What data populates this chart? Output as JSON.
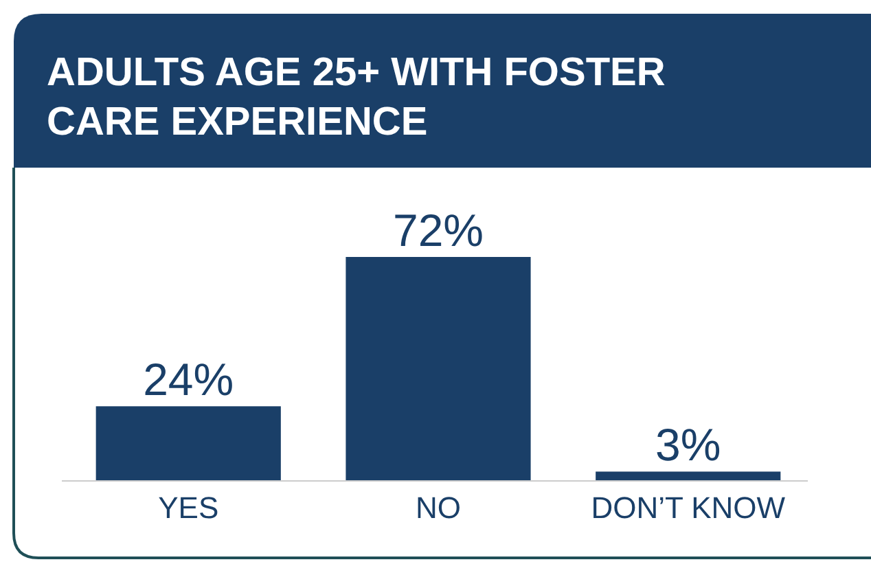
{
  "chart_data": {
    "type": "bar",
    "title": "ADULTS AGE 25+ WITH FOSTER CARE EXPERIENCE",
    "categories": [
      "YES",
      "NO",
      "DON’T KNOW"
    ],
    "values": [
      24,
      72,
      3
    ],
    "value_labels": [
      "24%",
      "72%",
      "3%"
    ],
    "color": "#1a3f68"
  }
}
